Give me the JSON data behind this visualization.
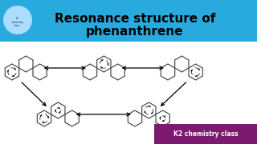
{
  "title_line1": "Resonance structure of",
  "title_line2": "phenanthrene",
  "title_color": "#000000",
  "header_bg": "#29aadf",
  "background_color": "#ffffff",
  "footer_text": "K2 chemistry class",
  "footer_bg": "#7b1a6e",
  "footer_color": "#ffffff"
}
